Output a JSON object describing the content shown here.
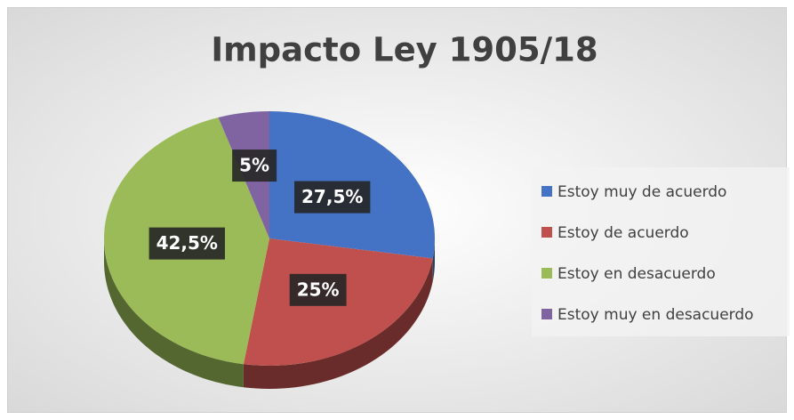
{
  "chart_data": {
    "type": "pie",
    "title": "Impacto Ley 1905/18",
    "categories": [
      "Estoy muy de acuerdo",
      "Estoy de acuerdo",
      "Estoy en desacuerdo",
      "Estoy muy en desacuerdo"
    ],
    "values": [
      27.5,
      25,
      42.5,
      5
    ],
    "value_labels": [
      "27,5%",
      "25%",
      "42,5%",
      "5%"
    ],
    "colors": [
      "#4472c4",
      "#c0504d",
      "#9bbb59",
      "#8064a2"
    ],
    "legend": "right"
  }
}
